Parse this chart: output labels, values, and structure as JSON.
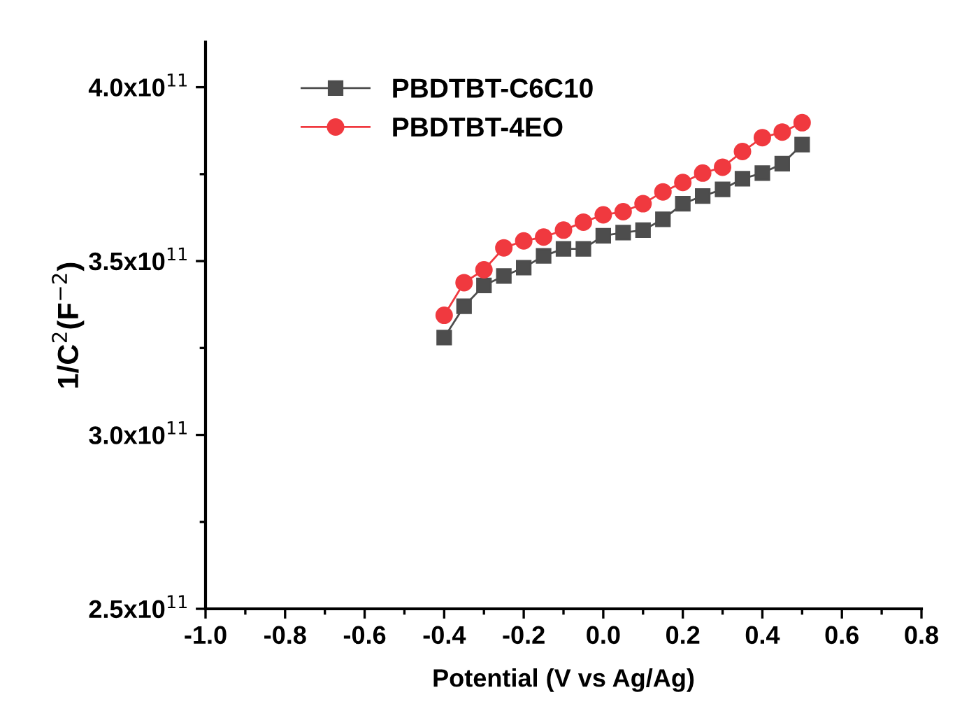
{
  "chart_data": {
    "type": "line",
    "xlabel": "Potential (V vs Ag/Ag)",
    "ylabel": "1/C$^{2}$(F$^{−2}$)",
    "x": [
      -0.4,
      -0.35,
      -0.3,
      -0.25,
      -0.2,
      -0.15,
      -0.1,
      -0.05,
      0.0,
      0.05,
      0.1,
      0.15,
      0.2,
      0.25,
      0.3,
      0.35,
      0.4,
      0.45,
      0.5
    ],
    "series": [
      {
        "name": "PBDTBT-C6C10",
        "color": "#4d4d4d",
        "marker": "square",
        "values": [
          328000000000,
          337000000000,
          343000000000,
          345700000000,
          348100000000,
          351500000000,
          353500000000,
          353500000000,
          357300000000,
          358200000000,
          358900000000,
          362000000000,
          366500000000,
          368700000000,
          370600000000,
          373700000000,
          375300000000,
          378000000000,
          383500000000
        ]
      },
      {
        "name": "PBDTBT-4EO",
        "color": "#f0393f",
        "marker": "circle",
        "values": [
          334400000000,
          343800000000,
          347500000000,
          353800000000,
          355800000000,
          356900000000,
          358900000000,
          361200000000,
          363300000000,
          364200000000,
          366500000000,
          369900000000,
          372600000000,
          375300000000,
          377000000000,
          381500000000,
          385500000000,
          387100000000,
          389800000000
        ]
      }
    ],
    "xlim": [
      -1.0,
      0.8
    ],
    "xticks": [
      {
        "value": -1.0,
        "label": "-1.0"
      },
      {
        "value": -0.8,
        "label": "-0.8"
      },
      {
        "value": -0.6,
        "label": "-0.6"
      },
      {
        "value": -0.4,
        "label": "-0.4"
      },
      {
        "value": -0.2,
        "label": "-0.2"
      },
      {
        "value": 0.0,
        "label": "0.0"
      },
      {
        "value": 0.2,
        "label": "0.2"
      },
      {
        "value": 0.4,
        "label": "0.4"
      },
      {
        "value": 0.6,
        "label": "0.6"
      },
      {
        "value": 0.8,
        "label": "0.8"
      }
    ],
    "ylim": [
      250000000000,
      413000000000
    ],
    "yticks": [
      {
        "value": 250000000000,
        "label": "2.5x10$^{11}$"
      },
      {
        "value": 300000000000,
        "label": "3.0x10$^{11}$"
      },
      {
        "value": 350000000000,
        "label": "3.5x10$^{11}$"
      },
      {
        "value": 400000000000,
        "label": "4.0x10$^{11}$"
      }
    ],
    "grid": false,
    "legend": "top left",
    "line_style": "solid"
  }
}
